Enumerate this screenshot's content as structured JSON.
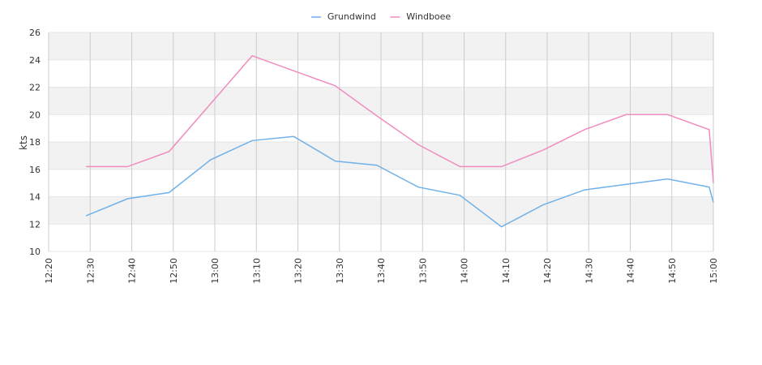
{
  "chart_data": {
    "type": "line",
    "y_label": "kts",
    "x": [
      "12:29",
      "12:39",
      "12:49",
      "12:59",
      "13:09",
      "13:19",
      "13:29",
      "13:39",
      "13:49",
      "13:59",
      "14:09",
      "14:19",
      "14:29",
      "14:39",
      "14:49",
      "14:59",
      "15:00"
    ],
    "series": [
      {
        "name": "Grundwind",
        "color": "#6fb1ea",
        "values": [
          12.6,
          13.85,
          14.3,
          16.7,
          18.1,
          18.4,
          16.6,
          16.3,
          14.7,
          14.1,
          11.8,
          13.4,
          14.5,
          14.9,
          15.3,
          14.7,
          13.6
        ]
      },
      {
        "name": "Windboee",
        "color": "#f08cbf",
        "values": [
          16.2,
          16.2,
          17.3,
          20.8,
          24.3,
          23.2,
          22.1,
          19.9,
          17.8,
          16.2,
          16.2,
          17.4,
          18.9,
          20.0,
          20.0,
          18.9,
          15.0
        ]
      }
    ],
    "xlim": [
      "12:20",
      "15:00"
    ],
    "xticks": [
      "12:20",
      "12:30",
      "12:40",
      "12:50",
      "13:00",
      "13:10",
      "13:20",
      "13:30",
      "13:40",
      "13:50",
      "14:00",
      "14:10",
      "14:20",
      "14:30",
      "14:40",
      "14:50",
      "15:00"
    ],
    "ylim": [
      10,
      26
    ],
    "yticks": [
      10,
      12,
      14,
      16,
      18,
      20,
      22,
      24,
      26
    ],
    "grid": true,
    "legend": "top"
  }
}
